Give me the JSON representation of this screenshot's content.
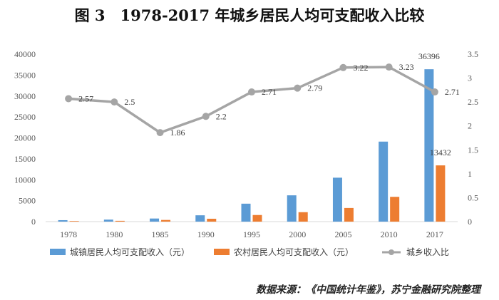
{
  "chart_data": {
    "type": "bar",
    "title": "图 3　1978-2017 年城乡居民人均可支配收入比较",
    "categories": [
      "1978",
      "1980",
      "1985",
      "1990",
      "1995",
      "2000",
      "2005",
      "2010",
      "2017"
    ],
    "series": [
      {
        "name": "城镇居民人均可支配收入（元）",
        "type": "bar",
        "axis": "left",
        "color": "#5B9BD5",
        "values": [
          343,
          478,
          739,
          1510,
          4283,
          6280,
          10493,
          19109,
          36396
        ]
      },
      {
        "name": "农村居民人均可支配收入（元）",
        "type": "bar",
        "axis": "left",
        "color": "#ED7D31",
        "values": [
          134,
          191,
          398,
          686,
          1578,
          2253,
          3255,
          5919,
          13432
        ]
      },
      {
        "name": "城乡收入比",
        "type": "line",
        "axis": "right",
        "color": "#A5A5A5",
        "values": [
          2.57,
          2.5,
          1.86,
          2.2,
          2.71,
          2.79,
          3.22,
          3.23,
          2.71
        ]
      }
    ],
    "data_labels": {
      "ratio": [
        "2.57",
        "2.5",
        "1.86",
        "2.2",
        "2.71",
        "2.79",
        "3.22",
        "3.23",
        "2.71"
      ],
      "urban_last": "36396",
      "rural_last": "13432"
    },
    "y_left": {
      "min": 0,
      "max": 40000,
      "ticks": [
        "0",
        "5000",
        "10000",
        "15000",
        "20000",
        "25000",
        "30000",
        "35000",
        "40000"
      ]
    },
    "y_right": {
      "min": 0,
      "max": 3.5,
      "ticks": [
        "0",
        "0.5",
        "1",
        "1.5",
        "2",
        "2.5",
        "3",
        "3.5"
      ]
    },
    "legend_position": "bottom",
    "grid": false
  },
  "source_note": "数据来源：《中国统计年鉴》，苏宁金融研究院整理"
}
